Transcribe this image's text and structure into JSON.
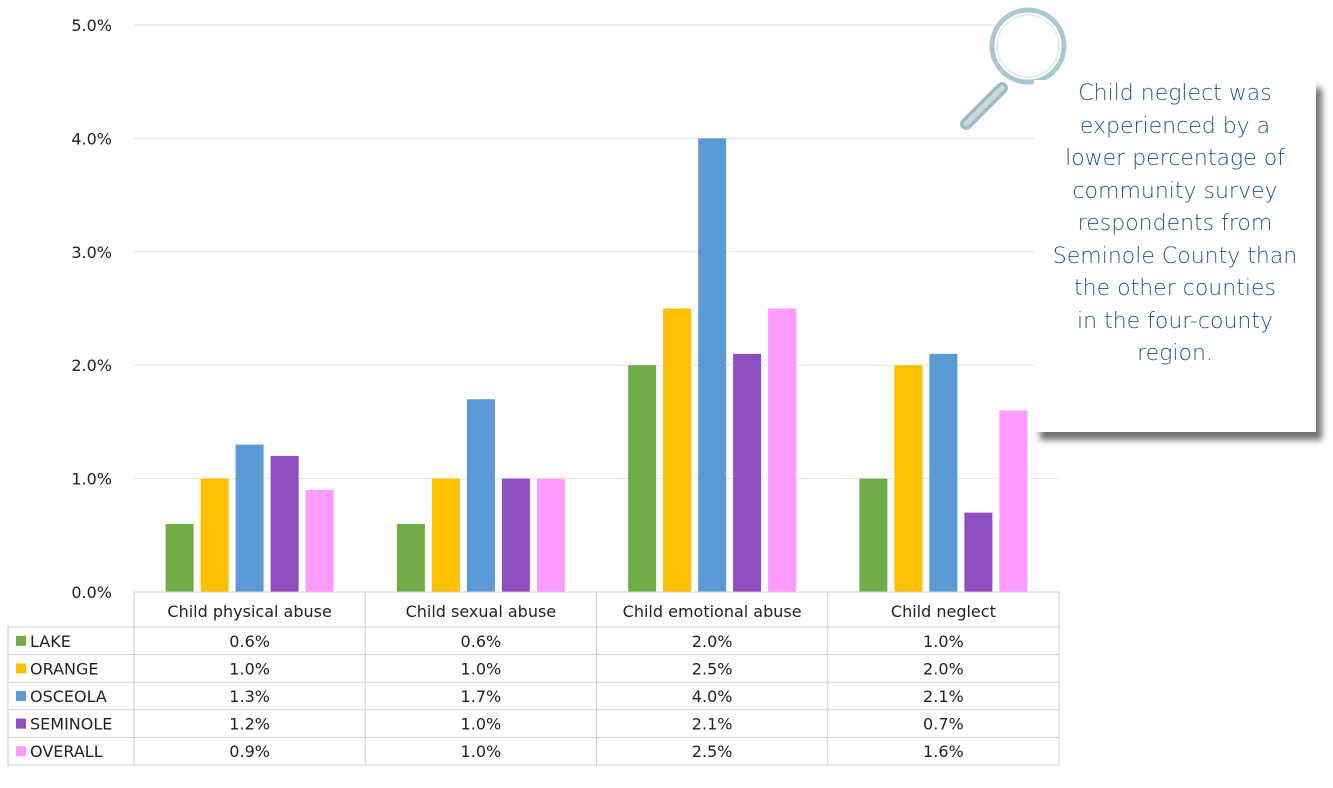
{
  "chart_data": {
    "type": "bar",
    "categories": [
      "Child physical abuse",
      "Child sexual abuse",
      "Child emotional abuse",
      "Child neglect"
    ],
    "series": [
      {
        "name": "LAKE",
        "color": "#70ad47",
        "values": [
          0.6,
          0.6,
          2.0,
          1.0
        ],
        "labels": [
          "0.6%",
          "0.6%",
          "2.0%",
          "1.0%"
        ]
      },
      {
        "name": "ORANGE",
        "color": "#ffc000",
        "values": [
          1.0,
          1.0,
          2.5,
          2.0
        ],
        "labels": [
          "1.0%",
          "1.0%",
          "2.5%",
          "2.0%"
        ]
      },
      {
        "name": "OSCEOLA",
        "color": "#5b9bd5",
        "values": [
          1.3,
          1.7,
          4.0,
          2.1
        ],
        "labels": [
          "1.3%",
          "1.7%",
          "4.0%",
          "2.1%"
        ]
      },
      {
        "name": "SEMINOLE",
        "color": "#8e4ec2",
        "values": [
          1.2,
          1.0,
          2.1,
          0.7
        ],
        "labels": [
          "1.2%",
          "1.0%",
          "2.1%",
          "0.7%"
        ]
      },
      {
        "name": "OVERALL",
        "color": "#fe9bfe",
        "values": [
          0.9,
          1.0,
          2.5,
          1.6
        ],
        "labels": [
          "0.9%",
          "1.0%",
          "2.5%",
          "1.6%"
        ]
      }
    ],
    "yticks": [
      "0.0%",
      "1.0%",
      "2.0%",
      "3.0%",
      "4.0%",
      "5.0%"
    ],
    "ylim": [
      0,
      5
    ],
    "grid": true,
    "legend": "data-table-left"
  },
  "callout": {
    "text": "Child neglect was\nexperienced by a\nlower percentage of\ncommunity survey\nrespondents from\nSeminole County than\nthe other counties\nin the four-county\nregion."
  },
  "icons": {
    "magnifier": "magnifying-glass-icon"
  }
}
